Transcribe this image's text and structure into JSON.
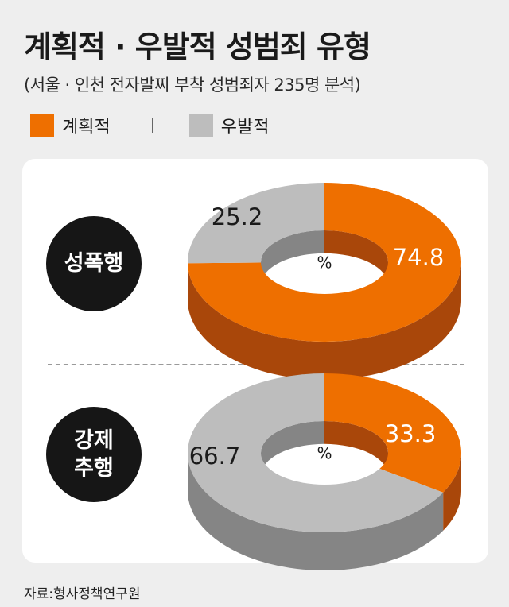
{
  "title": "계획적 · 우발적 성범죄 유형",
  "subtitle": "(서울 · 인천 전자발찌 부착 성범죄자 235명 분석)",
  "source": "자료:형사정책연구원",
  "legend": [
    {
      "label": "계획적",
      "color": "#ee6f00"
    },
    {
      "label": "우발적",
      "color": "#bdbdbd"
    }
  ],
  "colors": {
    "planned_top": "#ee6f00",
    "planned_side": "#a9470a",
    "accidental_top": "#bdbdbd",
    "accidental_side": "#858585",
    "badge": "#161616"
  },
  "chart_data": [
    {
      "type": "pie",
      "category": "성폭행",
      "categories": [
        "계획적",
        "우발적"
      ],
      "values": [
        74.8,
        25.2
      ],
      "unit": "%"
    },
    {
      "type": "pie",
      "category_lines": [
        "강제",
        "추행"
      ],
      "categories": [
        "계획적",
        "우발적"
      ],
      "values": [
        33.3,
        66.7
      ],
      "unit": "%"
    }
  ]
}
